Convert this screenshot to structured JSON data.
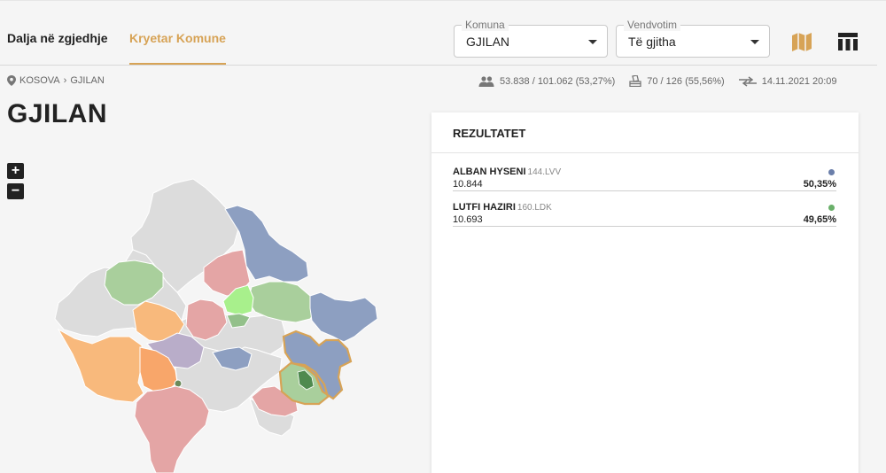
{
  "nav": {
    "tabs": [
      {
        "label": "Dalja në zgjedhje"
      },
      {
        "label": "Kryetar Komune"
      }
    ]
  },
  "filters": {
    "komuna": {
      "label": "Komuna",
      "value": "GJILAN"
    },
    "vendvotim": {
      "label": "Vendvotim",
      "value": "Të gjitha"
    }
  },
  "breadcrumb": {
    "root": "KOSOVA",
    "current": "GJILAN"
  },
  "stats": {
    "turnout": "53.838 / 101.062 (53,27%)",
    "stations": "70 / 126 (55,56%)",
    "updated": "14.11.2021 20:09"
  },
  "page_title": "GJILAN",
  "zoom": {
    "in": "+",
    "out": "−"
  },
  "results": {
    "title": "REZULTATET",
    "candidates": [
      {
        "name": "ALBAN HYSENI",
        "code": "144.LVV",
        "votes": "10.844",
        "percent": "50,35%",
        "color": "#6b7faa"
      },
      {
        "name": "LUTFI HAZIRI",
        "code": "160.LDK",
        "votes": "10.693",
        "percent": "49,65%",
        "color": "#6ab06a"
      }
    ]
  },
  "colors": {
    "accent": "#d7a356",
    "lvv_blue": "#8d9fc1",
    "ldk_green": "#a9cf9c",
    "red": "#e4a5a5",
    "orange": "#f8b97c",
    "purple": "#b9adc9",
    "light_green": "#a8f08c",
    "grey": "#dcdcdc"
  }
}
